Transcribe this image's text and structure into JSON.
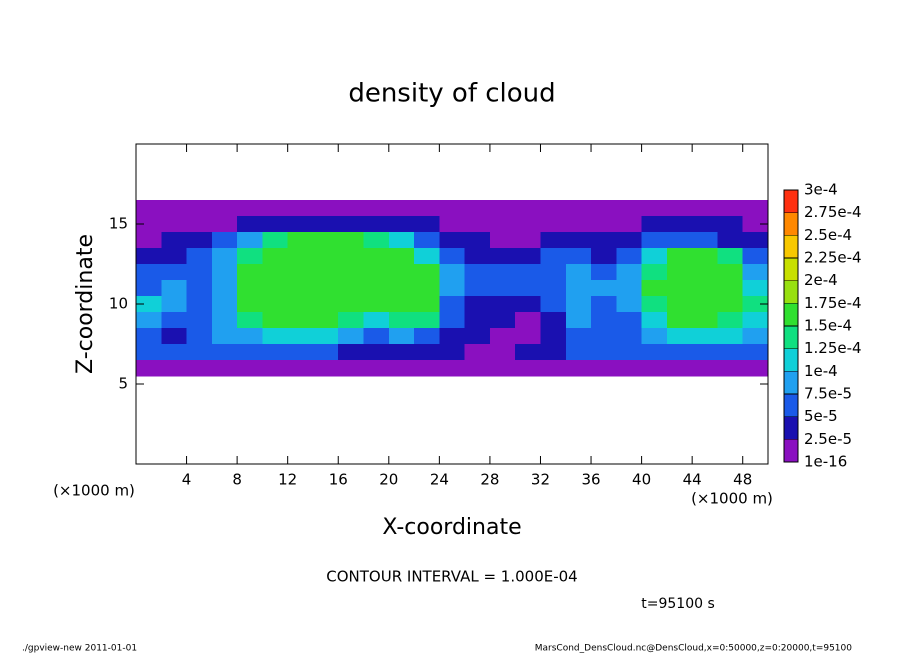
{
  "chart_data": {
    "type": "heatmap",
    "title": "density of cloud",
    "x_label": "X-coordinate",
    "y_label": "Z-coordinate",
    "x_unit": "(×1000 m)",
    "y_unit": "(×1000 m)",
    "contour_note": "CONTOUR INTERVAL = 1.000E-04",
    "time_note": "t=95100 s",
    "footer_left": "./gpview-new  2011-01-01",
    "footer_right": "MarsCond_DensCloud.nc@DensCloud,x=0:50000,z=0:20000,t=95100",
    "xlim": [
      0,
      50
    ],
    "ylim": [
      0,
      20
    ],
    "xticks": [
      4,
      8,
      12,
      16,
      20,
      24,
      28,
      32,
      36,
      40,
      44,
      48
    ],
    "yticks": [
      5,
      10,
      15
    ],
    "x": [
      1,
      3,
      5,
      7,
      9,
      11,
      13,
      15,
      17,
      19,
      21,
      23,
      25,
      27,
      29,
      31,
      33,
      35,
      37,
      39,
      41,
      43,
      45,
      47,
      49
    ],
    "y": [
      16,
      15,
      14,
      13,
      12,
      11,
      10,
      9,
      8,
      7,
      6
    ],
    "z": [
      [
        1e-05,
        1e-05,
        1e-05,
        1e-05,
        1e-05,
        1e-05,
        1e-05,
        1e-05,
        1e-05,
        1e-05,
        1e-05,
        1e-05,
        1e-05,
        1e-05,
        1e-05,
        1e-05,
        1e-05,
        1e-05,
        1e-05,
        1e-05,
        1e-05,
        1e-05,
        1e-05,
        1e-05,
        1e-05
      ],
      [
        1e-05,
        1e-05,
        1e-05,
        1e-05,
        3e-05,
        3e-05,
        3e-05,
        3e-05,
        3e-05,
        3e-05,
        3e-05,
        3e-05,
        1e-05,
        1e-05,
        1e-05,
        1e-05,
        1e-05,
        1e-05,
        1e-05,
        1e-05,
        3e-05,
        3e-05,
        3e-05,
        3e-05,
        1e-05
      ],
      [
        1e-05,
        3e-05,
        3e-05,
        6e-05,
        9e-05,
        0.00013,
        0.00015,
        0.00015,
        0.00015,
        0.00013,
        0.0001,
        6e-05,
        3e-05,
        3e-05,
        1e-05,
        1e-05,
        3e-05,
        3e-05,
        3e-05,
        3e-05,
        6e-05,
        6e-05,
        6e-05,
        3e-05,
        3e-05
      ],
      [
        3e-05,
        3e-05,
        6e-05,
        9e-05,
        0.00014,
        0.00016,
        0.00016,
        0.00016,
        0.00016,
        0.00016,
        0.00015,
        0.00011,
        6e-05,
        3e-05,
        3e-05,
        3e-05,
        6e-05,
        6e-05,
        3e-05,
        6e-05,
        0.00011,
        0.00015,
        0.00015,
        0.00013,
        6e-05
      ],
      [
        6e-05,
        6e-05,
        6e-05,
        9e-05,
        0.00015,
        0.00017,
        0.00017,
        0.00017,
        0.00017,
        0.00017,
        0.00016,
        0.00015,
        9e-05,
        6e-05,
        6e-05,
        6e-05,
        6e-05,
        9e-05,
        6e-05,
        9e-05,
        0.00014,
        0.00017,
        0.00017,
        0.00015,
        9e-05
      ],
      [
        6e-05,
        9e-05,
        6e-05,
        9e-05,
        0.00015,
        0.00017,
        0.00017,
        0.00017,
        0.00017,
        0.00017,
        0.00017,
        0.00015,
        9e-05,
        6e-05,
        6e-05,
        6e-05,
        6e-05,
        9e-05,
        9e-05,
        9e-05,
        0.00015,
        0.00017,
        0.00017,
        0.00016,
        0.00011
      ],
      [
        0.00012,
        9e-05,
        6e-05,
        9e-05,
        0.00015,
        0.00016,
        0.00016,
        0.00016,
        0.00016,
        0.00016,
        0.00016,
        0.00015,
        6e-05,
        3e-05,
        3e-05,
        3e-05,
        6e-05,
        9e-05,
        6e-05,
        9e-05,
        0.00014,
        0.00016,
        0.00016,
        0.00016,
        0.00013
      ],
      [
        9e-05,
        6e-05,
        6e-05,
        9e-05,
        0.00013,
        0.00015,
        0.00015,
        0.00015,
        0.00014,
        0.00011,
        0.00014,
        0.00013,
        6e-05,
        3e-05,
        3e-05,
        1e-05,
        3e-05,
        9e-05,
        6e-05,
        6e-05,
        0.00012,
        0.00015,
        0.00015,
        0.00014,
        0.00012
      ],
      [
        6e-05,
        3e-05,
        6e-05,
        9e-05,
        9e-05,
        0.00011,
        0.00011,
        0.00011,
        9e-05,
        6e-05,
        9e-05,
        6e-05,
        3e-05,
        3e-05,
        1e-05,
        1e-05,
        3e-05,
        6e-05,
        6e-05,
        6e-05,
        9e-05,
        0.00011,
        0.00011,
        0.00011,
        9e-05
      ],
      [
        6e-05,
        6e-05,
        6e-05,
        6e-05,
        6e-05,
        6e-05,
        6e-05,
        6e-05,
        3e-05,
        3e-05,
        3e-05,
        3e-05,
        3e-05,
        1e-05,
        1e-05,
        3e-05,
        3e-05,
        6e-05,
        6e-05,
        6e-05,
        6e-05,
        6e-05,
        6e-05,
        6e-05,
        6e-05
      ],
      [
        1e-05,
        1e-05,
        1e-05,
        1e-05,
        1e-05,
        1e-05,
        1e-05,
        1e-05,
        1e-05,
        1e-05,
        1e-05,
        1e-05,
        1e-05,
        1e-05,
        1e-05,
        1e-05,
        1e-05,
        1e-05,
        1e-05,
        1e-05,
        1e-05,
        1e-05,
        1e-05,
        1e-05,
        1e-05
      ]
    ],
    "levels": [
      {
        "value": 1e-16,
        "label": "1e-16"
      },
      {
        "value": 2.5e-05,
        "label": "2.5e-5"
      },
      {
        "value": 5e-05,
        "label": "5e-5"
      },
      {
        "value": 7.5e-05,
        "label": "7.5e-5"
      },
      {
        "value": 0.0001,
        "label": "1e-4"
      },
      {
        "value": 0.000125,
        "label": "1.25e-4"
      },
      {
        "value": 0.00015,
        "label": "1.5e-4"
      },
      {
        "value": 0.000175,
        "label": "1.75e-4"
      },
      {
        "value": 0.0002,
        "label": "2e-4"
      },
      {
        "value": 0.000225,
        "label": "2.25e-4"
      },
      {
        "value": 0.00025,
        "label": "2.5e-4"
      },
      {
        "value": 0.000275,
        "label": "2.75e-4"
      },
      {
        "value": 0.0003,
        "label": "3e-4"
      }
    ],
    "colors": [
      "#8a10c0",
      "#1a10b0",
      "#1a5ae8",
      "#20a0f0",
      "#10d0d8",
      "#10e080",
      "#30e030",
      "#98e010",
      "#c8e000",
      "#f8c800",
      "#ff8800",
      "#ff3010"
    ]
  }
}
